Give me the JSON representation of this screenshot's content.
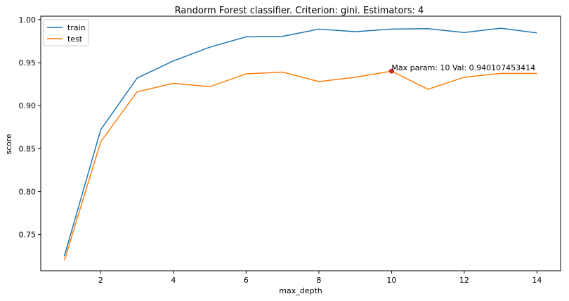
{
  "chart_data": {
    "type": "line",
    "title": "Randorm Forest classifier. Criterion: gini. Estimators: 4",
    "xlabel": "max_depth",
    "ylabel": "score",
    "xlim": [
      0.35,
      14.65
    ],
    "ylim": [
      0.708,
      1.004
    ],
    "xticks": [
      2,
      4,
      6,
      8,
      10,
      12,
      14
    ],
    "yticks": [
      0.75,
      0.8,
      0.85,
      0.9,
      0.95,
      1.0
    ],
    "x": [
      1,
      2,
      3,
      4,
      5,
      6,
      7,
      8,
      9,
      10,
      11,
      12,
      13,
      14
    ],
    "series": [
      {
        "name": "train",
        "color": "#1f77b4",
        "values": [
          0.725,
          0.872,
          0.932,
          0.952,
          0.968,
          0.98,
          0.9805,
          0.989,
          0.986,
          0.989,
          0.9895,
          0.985,
          0.99,
          0.9845
        ]
      },
      {
        "name": "test",
        "color": "#ff7f0e",
        "values": [
          0.72,
          0.858,
          0.916,
          0.926,
          0.922,
          0.937,
          0.939,
          0.928,
          0.933,
          0.940107453414,
          0.919,
          0.933,
          0.9375,
          0.9375
        ]
      }
    ],
    "highlight": {
      "x": 10,
      "y": 0.940107453414,
      "color": "#d62728"
    },
    "annotation": "Max param: 10 Val: 0.940107453414",
    "legend_position": "top-left",
    "grid": false
  }
}
